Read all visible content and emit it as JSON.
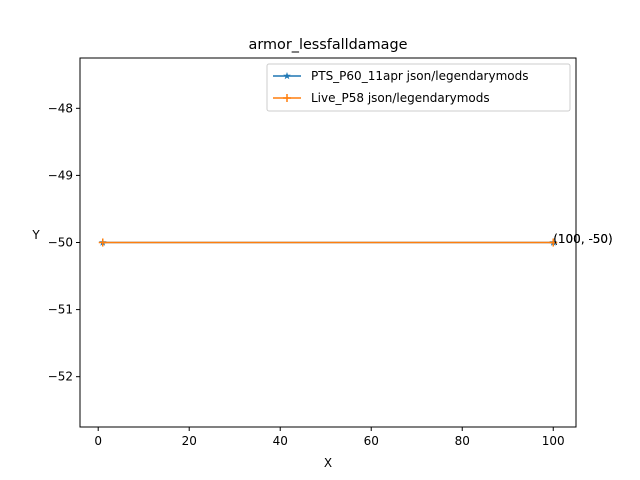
{
  "chart_data": {
    "type": "line",
    "title": "armor_lessfalldamage",
    "xlabel": "X",
    "ylabel": "Y",
    "xlim": [
      -4,
      105
    ],
    "ylim": [
      -52.75,
      -47.25
    ],
    "xticks": [
      0,
      20,
      40,
      60,
      80,
      100
    ],
    "yticks": [
      -52,
      -51,
      -50,
      -49,
      -48
    ],
    "xtick_labels": [
      "0",
      "20",
      "40",
      "60",
      "80",
      "100"
    ],
    "ytick_labels": [
      "−52",
      "−51",
      "−50",
      "−49",
      "−48"
    ],
    "grid": false,
    "legend_position": "top-right",
    "series": [
      {
        "name": "PTS_P60_11apr json/legendarymods",
        "marker": "star",
        "color": "#1f77b4",
        "x": [
          1,
          100
        ],
        "y": [
          -50,
          -50
        ]
      },
      {
        "name": "Live_P58 json/legendarymods",
        "marker": "plus",
        "color": "#ff7f0e",
        "x": [
          1,
          100
        ],
        "y": [
          -50,
          -50
        ]
      }
    ],
    "annotations": [
      {
        "text": "(100, -50)",
        "x": 100,
        "y": -50
      },
      {
        "text": "(100, -50)",
        "x": 100,
        "y": -50
      }
    ]
  }
}
